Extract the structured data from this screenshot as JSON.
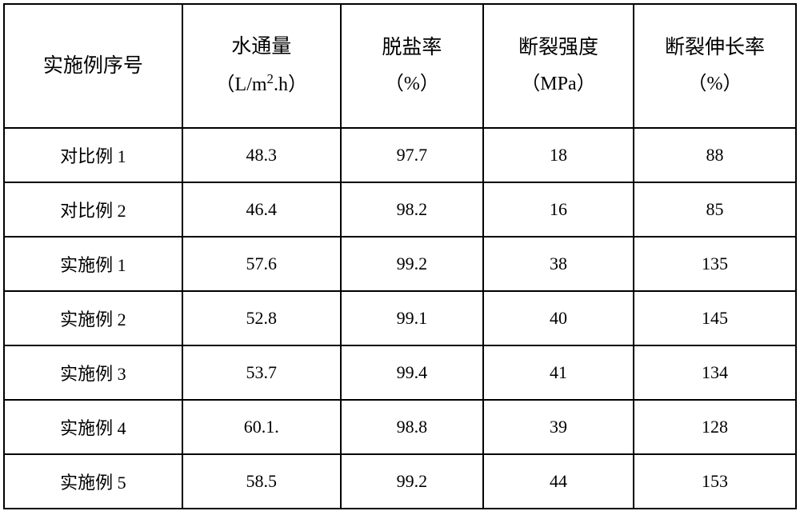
{
  "table": {
    "type": "table",
    "columns": [
      {
        "main": "实施例序号",
        "sub": "",
        "width": "22.5%",
        "alignment": "center"
      },
      {
        "main": "水通量",
        "sub": "（L/m².h）",
        "width": "20%",
        "alignment": "center"
      },
      {
        "main": "脱盐率",
        "sub": "（%）",
        "width": "18%",
        "alignment": "center"
      },
      {
        "main": "断裂强度",
        "sub": "（MPa）",
        "width": "19%",
        "alignment": "center"
      },
      {
        "main": "断裂伸长率",
        "sub": "（%）",
        "width": "20.5%",
        "alignment": "center"
      }
    ],
    "rows": [
      [
        "对比例 1",
        "48.3",
        "97.7",
        "18",
        "88"
      ],
      [
        "对比例 2",
        "46.4",
        "98.2",
        "16",
        "85"
      ],
      [
        "实施例 1",
        "57.6",
        "99.2",
        "38",
        "135"
      ],
      [
        "实施例 2",
        "52.8",
        "99.1",
        "40",
        "145"
      ],
      [
        "实施例 3",
        "53.7",
        "99.4",
        "41",
        "134"
      ],
      [
        "实施例 4",
        "60.1.",
        "98.8",
        "39",
        "128"
      ],
      [
        "实施例 5",
        "58.5",
        "99.2",
        "44",
        "153"
      ]
    ],
    "styling": {
      "border_color": "#000000",
      "border_width": 2,
      "background_color": "#ffffff",
      "text_color": "#000000",
      "header_fontsize": 25,
      "cell_fontsize": 22,
      "font_family": "SimSun",
      "header_row_height": 155,
      "data_row_height": 68
    }
  }
}
